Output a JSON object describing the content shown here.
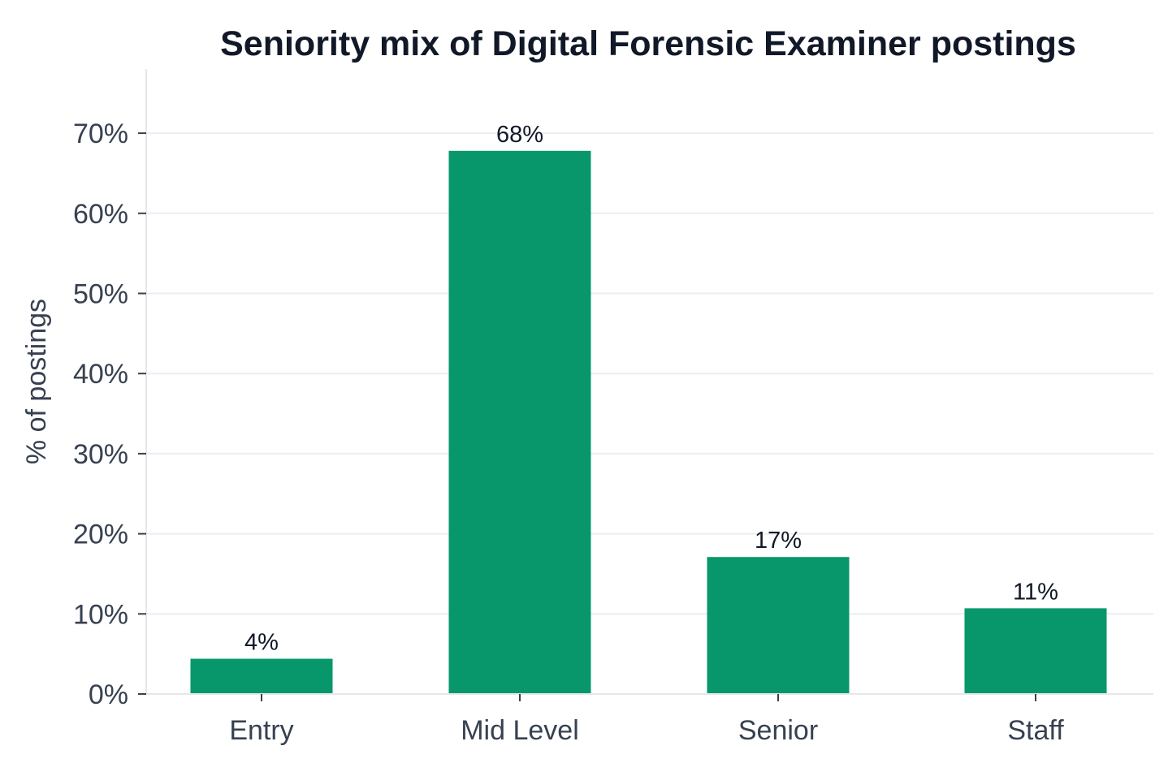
{
  "chart_data": {
    "type": "bar",
    "title": "Seniority mix of Digital Forensic Examiner postings",
    "xlabel": "",
    "ylabel": "% of postings",
    "categories": [
      "Entry",
      "Mid Level",
      "Senior",
      "Staff"
    ],
    "values": [
      4.4,
      67.8,
      17.1,
      10.7
    ],
    "data_labels": [
      "4%",
      "68%",
      "17%",
      "11%"
    ],
    "ylim": [
      0,
      78
    ],
    "yticks": [
      0,
      10,
      20,
      30,
      40,
      50,
      60,
      70
    ],
    "ytick_labels": [
      "0%",
      "10%",
      "20%",
      "30%",
      "40%",
      "50%",
      "60%",
      "70%"
    ],
    "grid": "horizontal",
    "colors": {
      "bar": "#07976a"
    }
  }
}
